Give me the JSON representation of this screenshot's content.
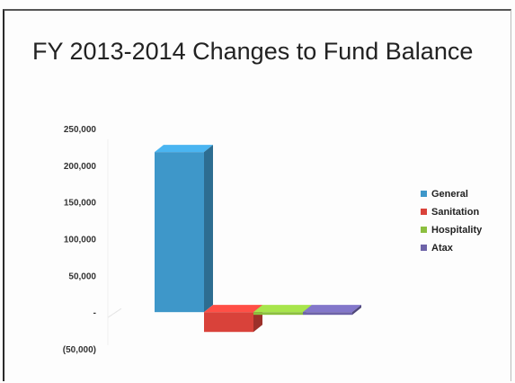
{
  "slide": {
    "title": "FY 2013-2014 Changes to Fund Balance"
  },
  "chart_data": {
    "type": "bar",
    "title": "FY 2013-2014 Changes to Fund Balance",
    "xlabel": "",
    "ylabel": "",
    "ylim": [
      -50000,
      250000
    ],
    "y_ticks": [
      250000,
      200000,
      150000,
      100000,
      50000,
      0,
      -50000
    ],
    "y_tick_labels": [
      "250,000",
      "200,000",
      "150,000",
      "100,000",
      "50,000",
      "-",
      "(50,000)"
    ],
    "grid": false,
    "legend_position": "right",
    "style": "3d-column",
    "series": [
      {
        "name": "General",
        "values": [
          218000
        ],
        "color": "#3e97c9"
      },
      {
        "name": "Sanitation",
        "values": [
          -27000
        ],
        "color": "#d9423a"
      },
      {
        "name": "Hospitality",
        "values": [
          -3000
        ],
        "color": "#8cbf3f"
      },
      {
        "name": "Atax",
        "values": [
          -3000
        ],
        "color": "#6d63a8"
      }
    ]
  }
}
